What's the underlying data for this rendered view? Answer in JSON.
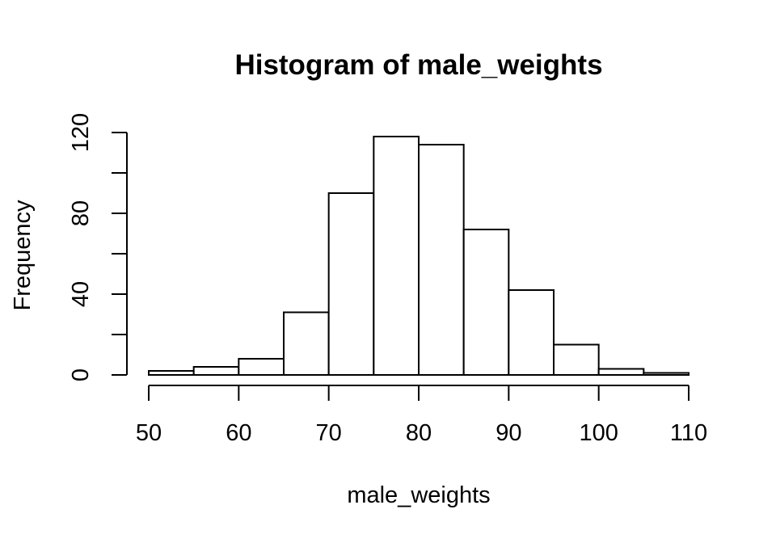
{
  "chart_data": {
    "type": "bar",
    "title": "Histogram of male_weights",
    "xlabel": "male_weights",
    "ylabel": "Frequency",
    "bins": [
      {
        "start": 50,
        "end": 55,
        "count": 2
      },
      {
        "start": 55,
        "end": 60,
        "count": 4
      },
      {
        "start": 60,
        "end": 65,
        "count": 8
      },
      {
        "start": 65,
        "end": 70,
        "count": 31
      },
      {
        "start": 70,
        "end": 75,
        "count": 90
      },
      {
        "start": 75,
        "end": 80,
        "count": 118
      },
      {
        "start": 80,
        "end": 85,
        "count": 114
      },
      {
        "start": 85,
        "end": 90,
        "count": 72
      },
      {
        "start": 90,
        "end": 95,
        "count": 42
      },
      {
        "start": 95,
        "end": 100,
        "count": 15
      },
      {
        "start": 100,
        "end": 105,
        "count": 3
      },
      {
        "start": 105,
        "end": 110,
        "count": 1
      }
    ],
    "xlim": [
      50,
      110
    ],
    "ylim": [
      0,
      120
    ],
    "x_ticks": [
      50,
      60,
      70,
      80,
      90,
      100,
      110
    ],
    "x_tick_labels": [
      "50",
      "60",
      "70",
      "80",
      "90",
      "100",
      "110"
    ],
    "y_ticks": [
      0,
      20,
      40,
      60,
      80,
      100,
      120
    ],
    "y_tick_labels": [
      "0",
      "40",
      "80",
      "120"
    ],
    "y_labeled_ticks": [
      0,
      40,
      80,
      120
    ],
    "grid": false,
    "legend": "none",
    "bar_fill": "#ffffff",
    "bar_stroke": "#000000"
  }
}
